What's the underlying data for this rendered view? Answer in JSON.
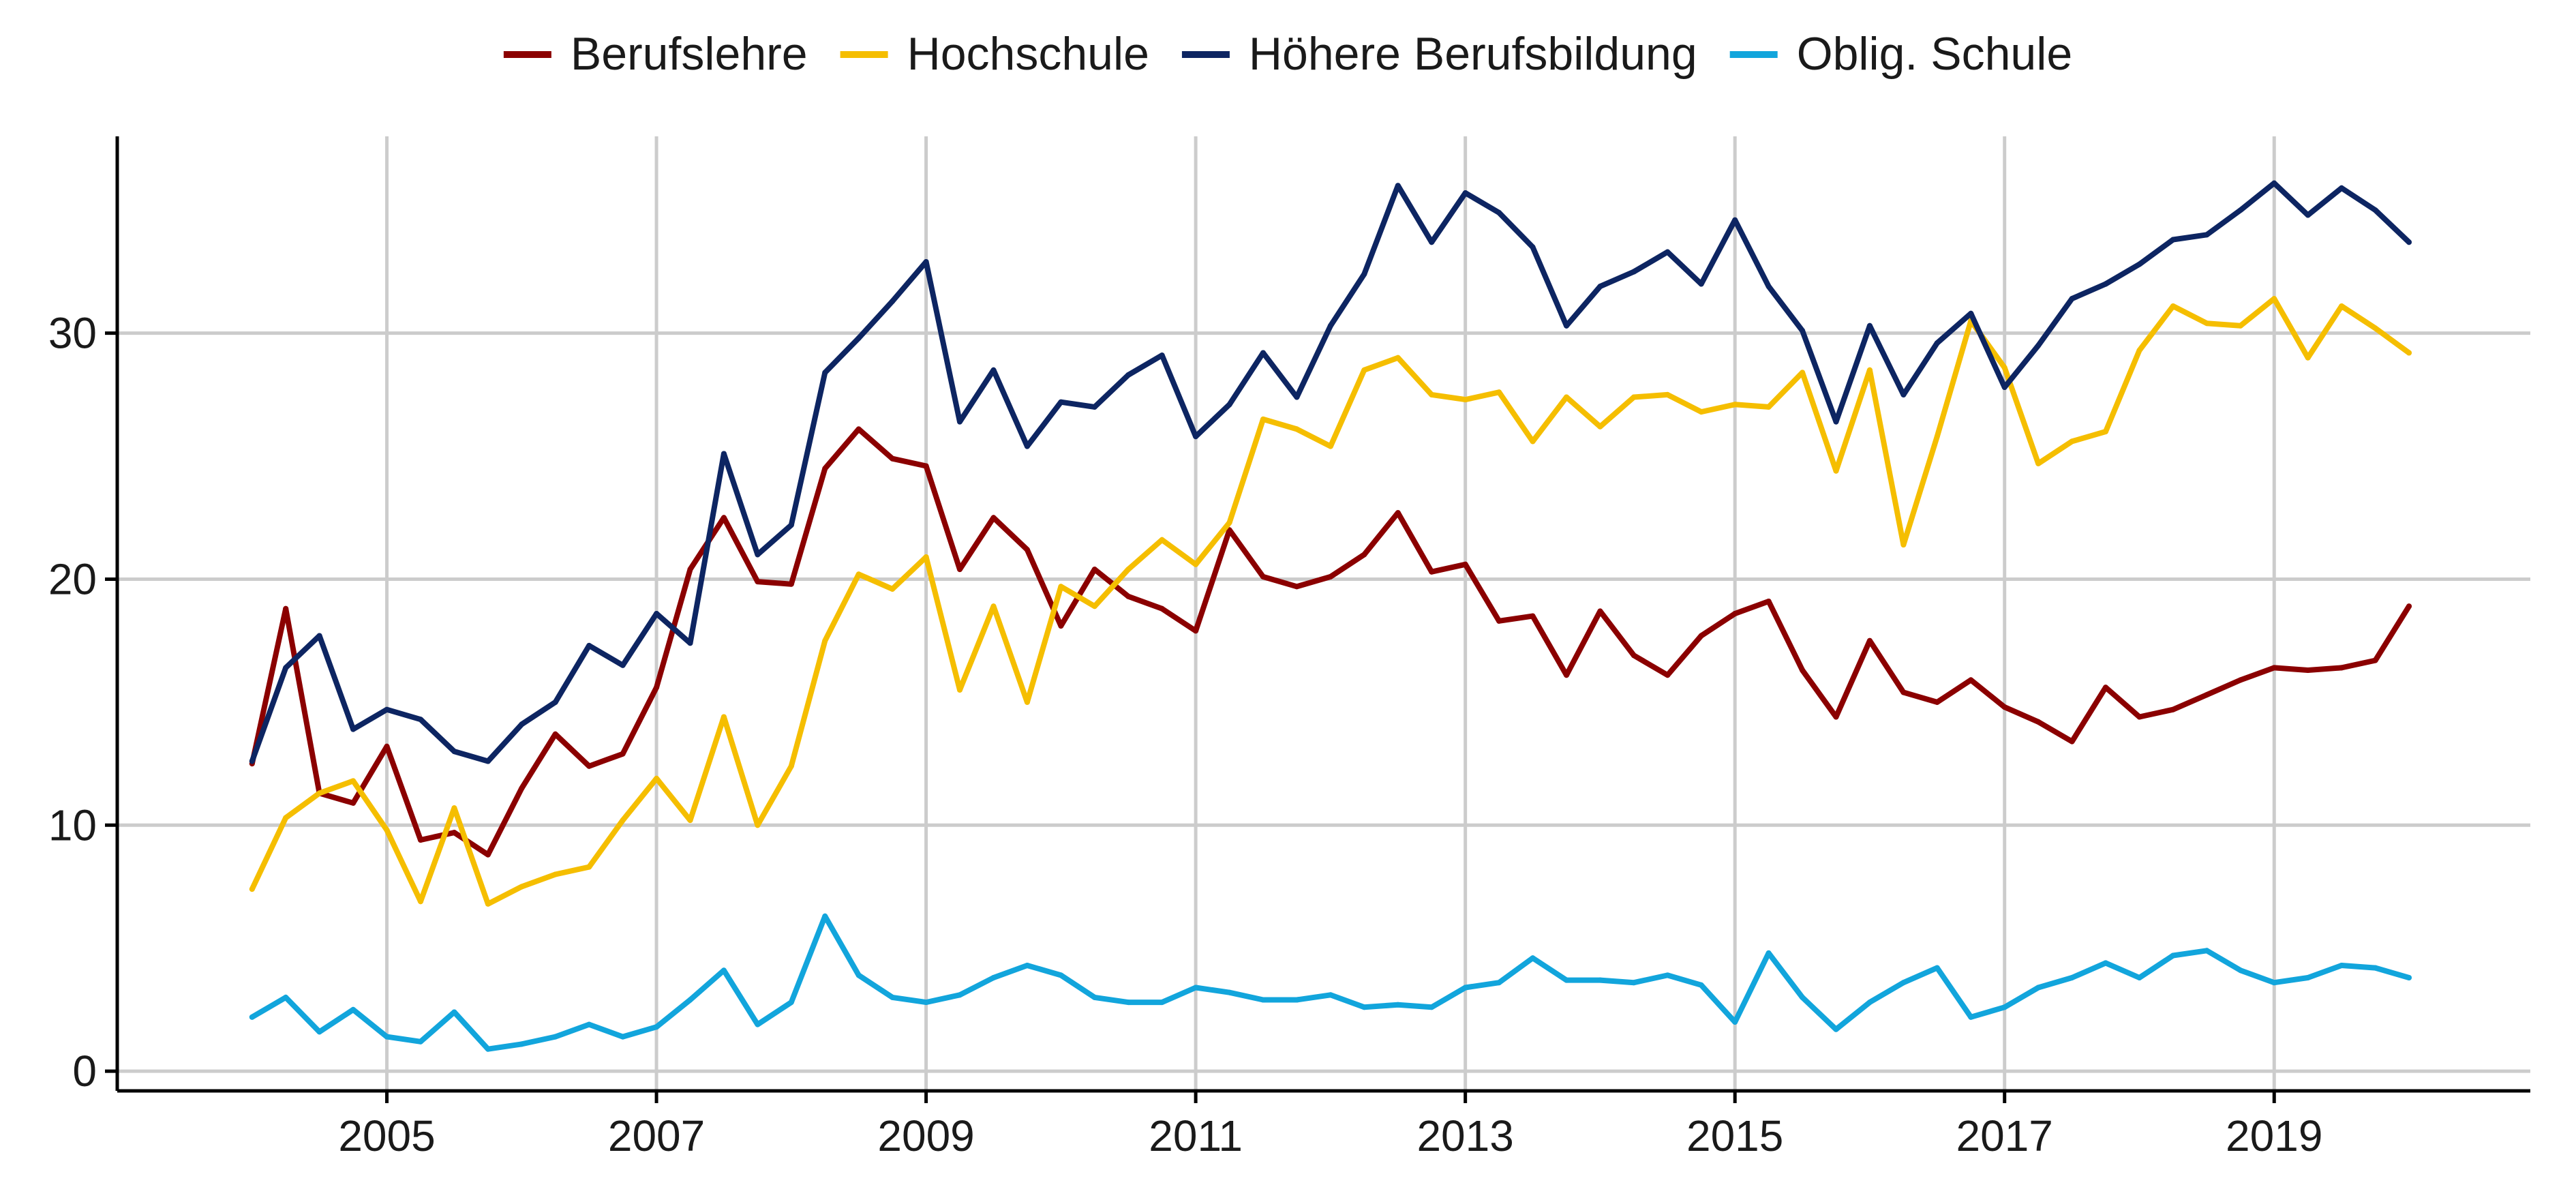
{
  "chart_data": {
    "type": "line",
    "title": "",
    "xlabel": "",
    "ylabel": "",
    "x_start": 2004.0,
    "x_step": 0.25,
    "xlim": [
      2003.0,
      2020.9
    ],
    "ylim": [
      -0.8,
      38.0
    ],
    "x_ticks": [
      2005,
      2007,
      2009,
      2011,
      2013,
      2015,
      2017,
      2019
    ],
    "x_tick_labels": [
      "2005",
      "2007",
      "2009",
      "2011",
      "2013",
      "2015",
      "2017",
      "2019"
    ],
    "y_ticks": [
      0,
      10,
      20,
      30
    ],
    "y_tick_labels": [
      "0",
      "10",
      "20",
      "30"
    ],
    "grid": true,
    "legend_position": "top",
    "series": [
      {
        "name": "Berufslehre",
        "color": "#8b0000",
        "values": [
          12.5,
          18.8,
          11.3,
          10.9,
          13.2,
          9.4,
          9.7,
          8.8,
          11.5,
          13.7,
          12.4,
          12.9,
          15.6,
          20.4,
          22.5,
          19.9,
          19.8,
          24.5,
          26.1,
          24.9,
          24.6,
          20.4,
          22.5,
          21.2,
          18.1,
          20.4,
          19.3,
          18.8,
          17.9,
          22.0,
          20.1,
          19.7,
          20.1,
          21.0,
          22.7,
          20.3,
          20.6,
          18.3,
          18.5,
          16.1,
          18.7,
          16.9,
          16.1,
          17.7,
          18.6,
          19.1,
          16.3,
          14.4,
          17.5,
          15.4,
          15.0,
          15.9,
          14.8,
          14.2,
          13.4,
          15.6,
          14.4,
          14.7,
          15.3,
          15.9,
          16.4,
          16.3,
          16.4,
          16.7,
          18.9
        ]
      },
      {
        "name": "Hochschule",
        "color": "#f5be00",
        "values": [
          7.4,
          10.3,
          11.3,
          11.8,
          9.8,
          6.9,
          10.7,
          6.8,
          7.5,
          8.0,
          8.3,
          10.2,
          11.9,
          10.2,
          14.4,
          10.0,
          12.4,
          17.5,
          20.2,
          19.6,
          20.9,
          15.5,
          18.9,
          15.0,
          19.7,
          18.9,
          20.4,
          21.6,
          20.6,
          22.3,
          26.5,
          26.1,
          25.4,
          28.5,
          29.0,
          27.5,
          27.3,
          27.6,
          25.6,
          27.4,
          26.2,
          27.4,
          27.5,
          26.8,
          27.1,
          27.0,
          28.4,
          24.4,
          28.5,
          21.4,
          25.8,
          30.5,
          28.6,
          24.7,
          25.6,
          26.0,
          29.3,
          31.1,
          30.4,
          30.3,
          31.4,
          29.0,
          31.1,
          30.2,
          29.2
        ]
      },
      {
        "name": "Höhere Berufsbildung",
        "color": "#0d2562",
        "values": [
          12.6,
          16.4,
          17.7,
          13.9,
          14.7,
          14.3,
          13.0,
          12.6,
          14.1,
          15.0,
          17.3,
          16.5,
          18.6,
          17.4,
          25.1,
          21.0,
          22.2,
          28.4,
          29.8,
          31.3,
          32.9,
          26.4,
          28.5,
          25.4,
          27.2,
          27.0,
          28.3,
          29.1,
          25.8,
          27.1,
          29.2,
          27.4,
          30.3,
          32.4,
          36.0,
          33.7,
          35.7,
          34.9,
          33.5,
          30.3,
          31.9,
          32.5,
          33.3,
          32.0,
          34.6,
          31.9,
          30.1,
          26.4,
          30.3,
          27.5,
          29.6,
          30.8,
          27.8,
          29.5,
          31.4,
          32.0,
          32.8,
          33.8,
          34.0,
          35.0,
          36.1,
          34.8,
          35.9,
          35.0,
          33.7
        ]
      },
      {
        "name": "Oblig. Schule",
        "color": "#12a5dc",
        "values": [
          2.2,
          3.0,
          1.6,
          2.5,
          1.4,
          1.2,
          2.4,
          0.9,
          1.1,
          1.4,
          1.9,
          1.4,
          1.8,
          2.9,
          4.1,
          1.9,
          2.8,
          6.3,
          3.9,
          3.0,
          2.8,
          3.1,
          3.8,
          4.3,
          3.9,
          3.0,
          2.8,
          2.8,
          3.4,
          3.2,
          2.9,
          2.9,
          3.1,
          2.6,
          2.7,
          2.6,
          3.4,
          3.6,
          4.6,
          3.7,
          3.7,
          3.6,
          3.9,
          3.5,
          2.0,
          4.8,
          3.0,
          1.7,
          2.8,
          3.6,
          4.2,
          2.2,
          2.6,
          3.4,
          3.8,
          4.4,
          3.8,
          4.7,
          4.9,
          4.1,
          3.6,
          3.8,
          4.3,
          4.2,
          3.8
        ]
      }
    ]
  }
}
